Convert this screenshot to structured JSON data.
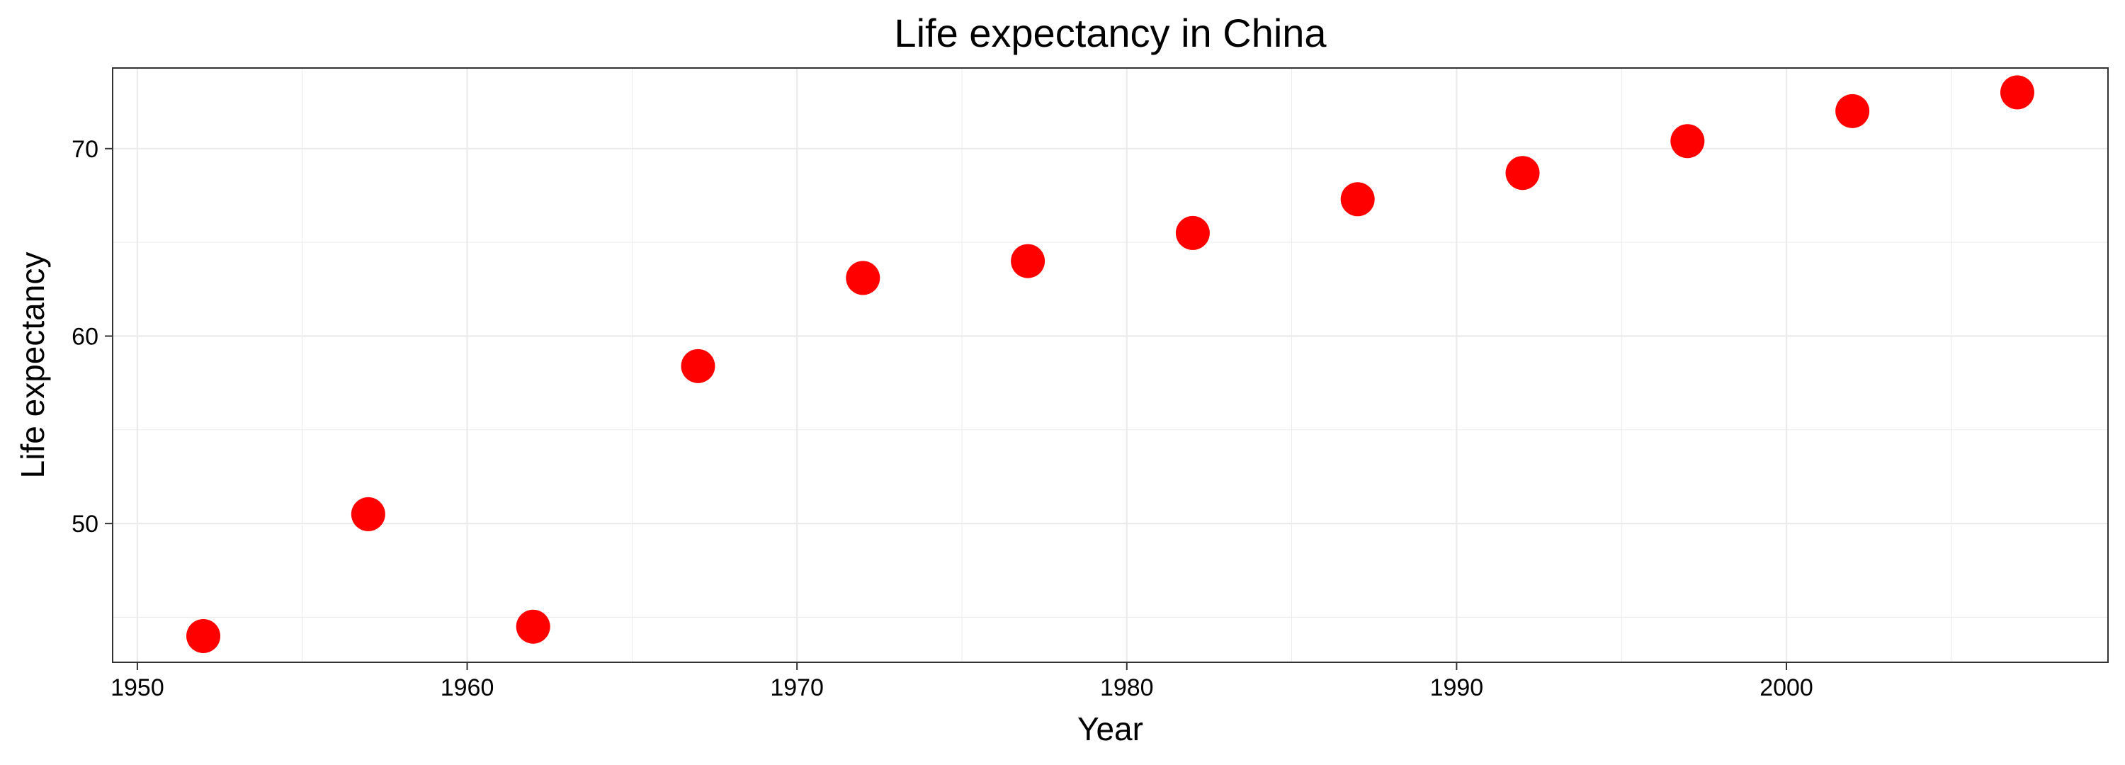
{
  "chart_data": {
    "type": "scatter",
    "title": "Life expectancy in China",
    "xlabel": "Year",
    "ylabel": "Life expectancy",
    "xlim": [
      1949.25,
      2009.75
    ],
    "ylim": [
      42.6,
      74.3
    ],
    "x_ticks": [
      1950,
      1960,
      1970,
      1980,
      1990,
      2000
    ],
    "y_ticks": [
      50,
      60,
      70
    ],
    "x_minor_ticks": [
      1955,
      1965,
      1975,
      1985,
      1995,
      2005
    ],
    "y_minor_ticks": [
      45,
      55,
      65
    ],
    "grid": true,
    "legend": "none",
    "marker_color": "#ff0000",
    "panel_border_color": "#333333",
    "grid_color": "#ebebeb",
    "x": [
      1952,
      1957,
      1962,
      1967,
      1972,
      1977,
      1982,
      1987,
      1992,
      1997,
      2002,
      2007
    ],
    "y": [
      44.0,
      50.5,
      44.5,
      58.4,
      63.1,
      64.0,
      65.5,
      67.3,
      68.7,
      70.4,
      72.0,
      73.0
    ]
  }
}
